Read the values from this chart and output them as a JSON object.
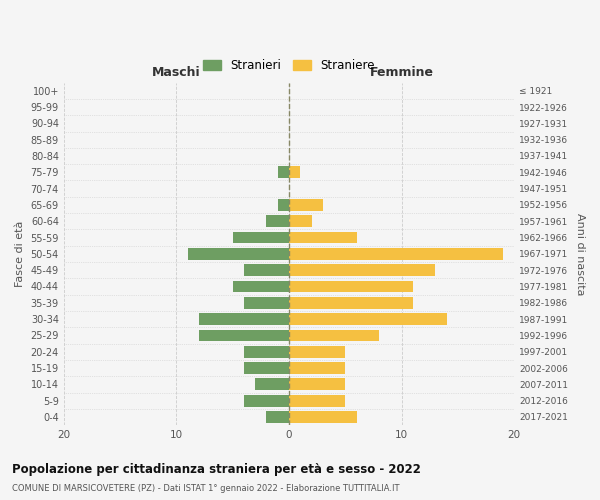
{
  "age_groups": [
    "0-4",
    "5-9",
    "10-14",
    "15-19",
    "20-24",
    "25-29",
    "30-34",
    "35-39",
    "40-44",
    "45-49",
    "50-54",
    "55-59",
    "60-64",
    "65-69",
    "70-74",
    "75-79",
    "80-84",
    "85-89",
    "90-94",
    "95-99",
    "100+"
  ],
  "birth_years": [
    "2017-2021",
    "2012-2016",
    "2007-2011",
    "2002-2006",
    "1997-2001",
    "1992-1996",
    "1987-1991",
    "1982-1986",
    "1977-1981",
    "1972-1976",
    "1967-1971",
    "1962-1966",
    "1957-1961",
    "1952-1956",
    "1947-1951",
    "1942-1946",
    "1937-1941",
    "1932-1936",
    "1927-1931",
    "1922-1926",
    "≤ 1921"
  ],
  "maschi": [
    2,
    4,
    3,
    4,
    4,
    8,
    8,
    4,
    5,
    4,
    9,
    5,
    2,
    1,
    0,
    1,
    0,
    0,
    0,
    0,
    0
  ],
  "femmine": [
    6,
    5,
    5,
    5,
    5,
    8,
    14,
    11,
    11,
    13,
    19,
    6,
    2,
    3,
    0,
    1,
    0,
    0,
    0,
    0,
    0
  ],
  "maschi_color": "#6e9e62",
  "femmine_color": "#f5c041",
  "background_color": "#f5f5f5",
  "grid_color": "#cccccc",
  "title": "Popolazione per cittadinanza straniera per età e sesso - 2022",
  "subtitle": "COMUNE DI MARSICOVETERE (PZ) - Dati ISTAT 1° gennaio 2022 - Elaborazione TUTTITALIA.IT",
  "ylabel_left": "Fasce di età",
  "ylabel_right": "Anni di nascita",
  "xlabel_left": "Maschi",
  "xlabel_right": "Femmine",
  "legend_maschi": "Stranieri",
  "legend_femmine": "Straniere",
  "xlim": 20
}
